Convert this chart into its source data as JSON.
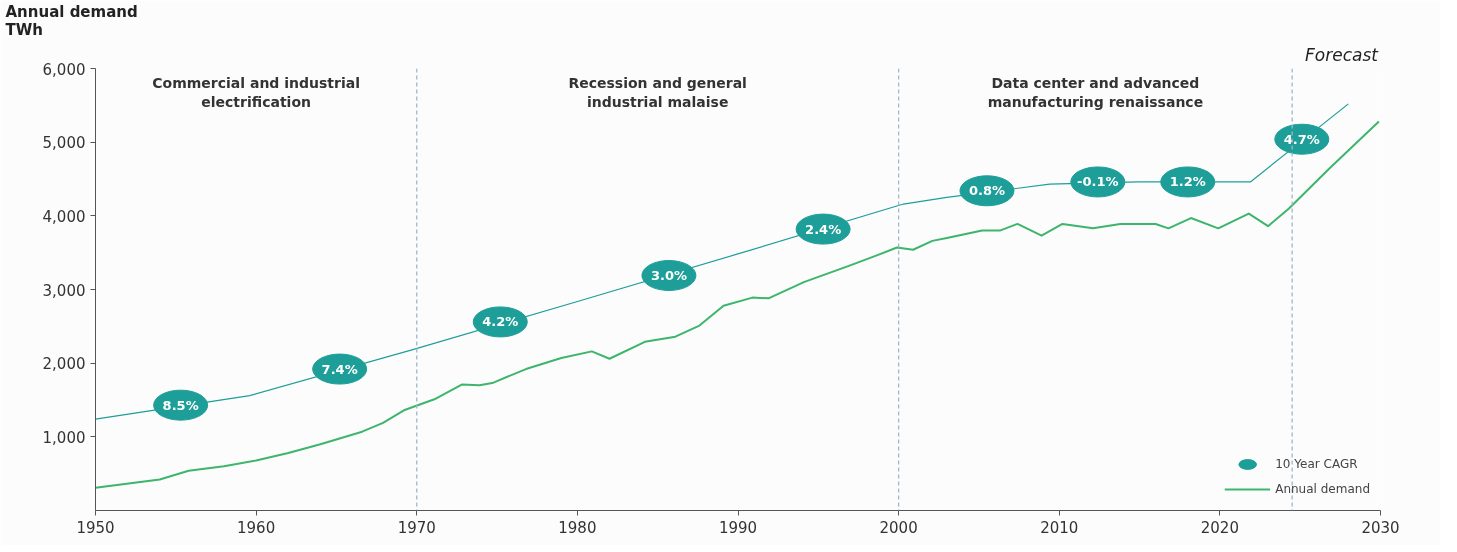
{
  "chart_data": {
    "type": "line",
    "ylabel": "Annual demand\nTWh",
    "xlim": [
      1950,
      2030
    ],
    "xticks": [
      1950,
      1960,
      1970,
      1980,
      1990,
      2000,
      2010,
      2020,
      2030
    ],
    "ylim": [
      0,
      6000
    ],
    "yticks": [
      {
        "value": 1000,
        "label": "1,000"
      },
      {
        "value": 2000,
        "label": "2,000"
      },
      {
        "value": 3000,
        "label": "3,000"
      },
      {
        "value": 4000,
        "label": "4,000"
      },
      {
        "value": 5000,
        "label": "5,000"
      },
      {
        "value": 6000,
        "label": "6,000"
      }
    ],
    "grid": false,
    "legend": "bottom right",
    "series": [
      {
        "name": "10 Year CAGR",
        "color": "#1e9e98",
        "x": [
          1950,
          1959.6,
          1969.7,
          1979.9,
          1990.1,
          2000.3,
          2003,
          2009.4,
          2014.9,
          2021.9,
          2028
        ],
        "values": [
          1240,
          1560,
          2180,
          2830,
          3490,
          4160,
          4250,
          4430,
          4460,
          4460,
          5520
        ]
      },
      {
        "name": "Annual demand",
        "color": "#3db56c",
        "x": [
          1950,
          1954.0,
          1955.8,
          1958,
          1960,
          1962,
          1964,
          1966.6,
          1967.9,
          1969.2,
          1971.1,
          1972.8,
          1973.9,
          1974.7,
          1976.8,
          1979,
          1980.9,
          1982,
          1984.2,
          1986.1,
          1987.6,
          1989.1,
          1990.9,
          1991.9,
          1994.1,
          1996.9,
          1998.6,
          1999.9,
          2000.9,
          2002.1,
          2003.0,
          2005.2,
          2006.3,
          2007.4,
          2008.9,
          2010.2,
          2012.1,
          2013.8,
          2016,
          2016.8,
          2018.2,
          2019.9,
          2021.8,
          2023.0,
          2024.3,
          2026.8,
          2029.9
        ],
        "values": [
          310,
          420,
          540,
          600,
          680,
          780,
          900,
          1070,
          1190,
          1360,
          1510,
          1710,
          1700,
          1730,
          1920,
          2070,
          2160,
          2060,
          2290,
          2360,
          2510,
          2780,
          2890,
          2880,
          3100,
          3320,
          3460,
          3570,
          3540,
          3660,
          3700,
          3800,
          3800,
          3890,
          3730,
          3890,
          3830,
          3890,
          3890,
          3830,
          3970,
          3830,
          4030,
          3860,
          4100,
          4640,
          5280
        ]
      }
    ],
    "ref_lines": [
      {
        "axis": "x",
        "value": 1970,
        "color": "#9fb8c8",
        "line_style": "dashed"
      },
      {
        "axis": "x",
        "value": 2000,
        "color": "#9fb8c8",
        "line_style": "dashed"
      },
      {
        "axis": "x",
        "value": 2024.5,
        "label": "Forecast",
        "color": "#9fb8c8",
        "line_style": "dashed"
      }
    ],
    "annotations": [
      "Commercial and industrial\nelectrification",
      "Recession and general\nindustrial malaise",
      "Data center and advanced\nmanufacturing renaissance",
      {
        "text": "8.5%",
        "x": 1955.3,
        "y": 1430
      },
      {
        "text": "7.4%",
        "x": 1965.2,
        "y": 1920
      },
      {
        "text": "4.2%",
        "x": 1975.2,
        "y": 2560
      },
      {
        "text": "3.0%",
        "x": 1985.7,
        "y": 3190
      },
      {
        "text": "2.4%",
        "x": 1995.3,
        "y": 3820
      },
      {
        "text": "0.8%",
        "x": 2005.5,
        "y": 4340
      },
      {
        "text": "-0.1%",
        "x": 2012.4,
        "y": 4460
      },
      {
        "text": "1.2%",
        "x": 2018,
        "y": 4460
      },
      {
        "text": "4.7%",
        "x": 2025.1,
        "y": 5040
      }
    ]
  }
}
